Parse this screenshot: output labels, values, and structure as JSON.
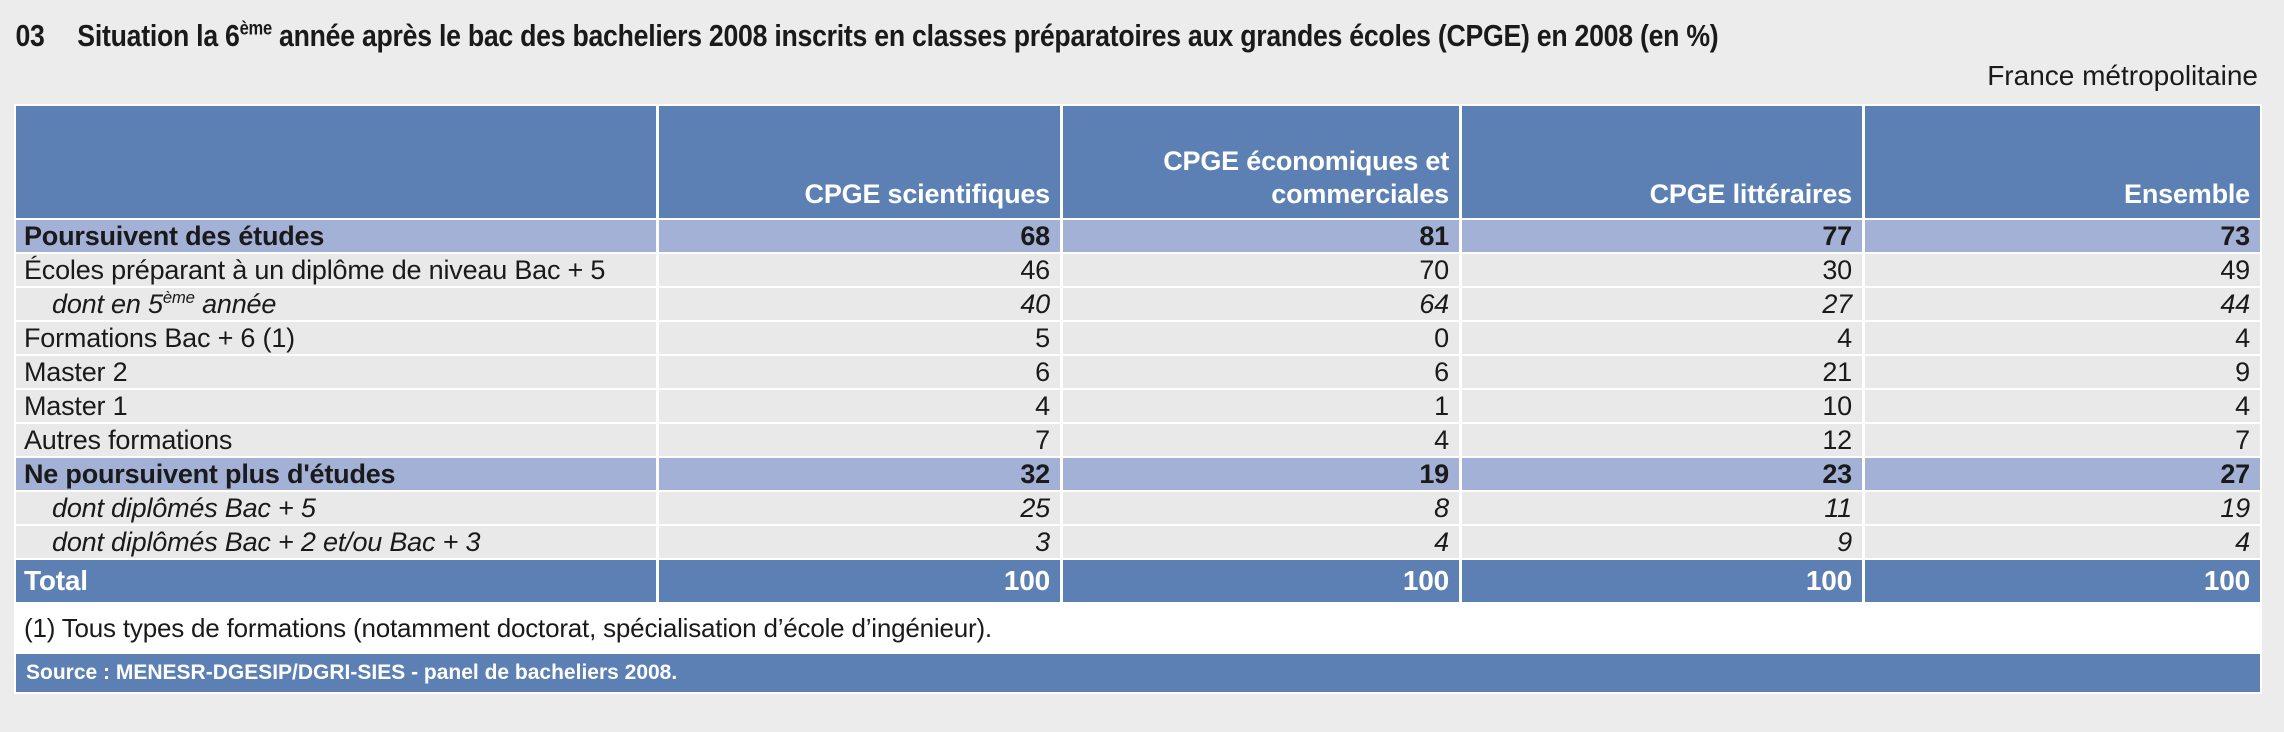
{
  "header": {
    "figure_number": "03",
    "title_parts": [
      "Situation la 6",
      {
        "sup": "ème"
      },
      " année après le bac des bacheliers 2008 inscrits en classes préparatoires aux grandes écoles (CPGE) en 2008 (en %)"
    ],
    "subtitle": "France métropolitaine"
  },
  "table": {
    "columns": [
      "",
      "CPGE scientifiques",
      "CPGE économiques et commerciales",
      "CPGE littéraires",
      "Ensemble"
    ],
    "rows": [
      {
        "style": "section",
        "label_parts": [
          "Poursuivent des études"
        ],
        "values": [
          68,
          81,
          77,
          73
        ]
      },
      {
        "style": "normal",
        "label_parts": [
          "Écoles préparant à un diplôme de niveau Bac + 5"
        ],
        "values": [
          46,
          70,
          30,
          49
        ]
      },
      {
        "style": "detail",
        "label_parts": [
          "dont en 5",
          {
            "sup": "ème"
          },
          " année"
        ],
        "values": [
          40,
          64,
          27,
          44
        ]
      },
      {
        "style": "normal",
        "label_parts": [
          "Formations Bac + 6 (1)"
        ],
        "values": [
          5,
          0,
          4,
          4
        ]
      },
      {
        "style": "normal",
        "label_parts": [
          "Master 2"
        ],
        "values": [
          6,
          6,
          21,
          9
        ]
      },
      {
        "style": "normal",
        "label_parts": [
          "Master 1"
        ],
        "values": [
          4,
          1,
          10,
          4
        ]
      },
      {
        "style": "normal",
        "label_parts": [
          "Autres formations"
        ],
        "values": [
          7,
          4,
          12,
          7
        ]
      },
      {
        "style": "section",
        "label_parts": [
          "Ne poursuivent plus d'études"
        ],
        "values": [
          32,
          19,
          23,
          27
        ]
      },
      {
        "style": "detail",
        "label_parts": [
          "dont diplômés Bac + 5"
        ],
        "values": [
          25,
          8,
          11,
          19
        ]
      },
      {
        "style": "detail",
        "label_parts": [
          "dont diplômés Bac + 2 et/ou Bac + 3"
        ],
        "values": [
          3,
          4,
          9,
          4
        ]
      },
      {
        "style": "total",
        "label_parts": [
          "Total"
        ],
        "values": [
          100,
          100,
          100,
          100
        ]
      }
    ],
    "footnote": "(1) Tous types de formations (notamment doctorat, spécialisation d’école d’ingénieur).",
    "source": "Source : MENESR-DGESIP/DGRI-SIES - panel de bacheliers 2008."
  },
  "colors": {
    "header_blue": "#5d80b4",
    "section_blue": "#a2b1d5",
    "row_gray": "#e9e9e9",
    "page_bg": "#ececec",
    "text": "#1a1a1a",
    "white": "#ffffff"
  }
}
